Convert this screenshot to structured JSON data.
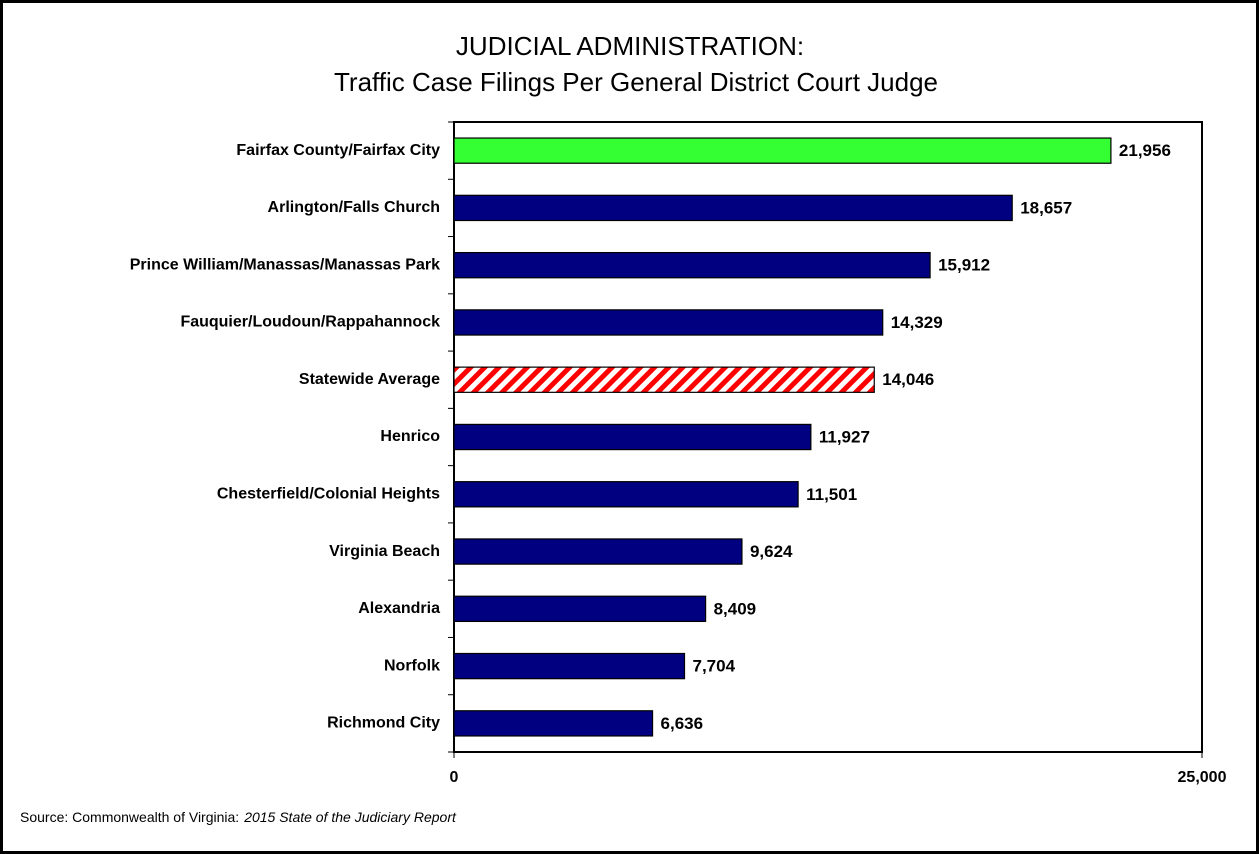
{
  "chart_data": {
    "type": "barh",
    "title": [
      "JUDICIAL ADMINISTRATION:",
      "Traffic Case Filings Per General District Court Judge"
    ],
    "categories": [
      "Fairfax County/Fairfax City",
      "Arlington/Falls Church",
      "Prince William/Manassas/Manassas Park",
      "Fauquier/Loudoun/Rappahannock",
      "Statewide Average",
      "Henrico",
      "Chesterfield/Colonial Heights",
      "Virginia Beach",
      "Alexandria",
      "Norfolk",
      "Richmond City"
    ],
    "values": [
      21956,
      18657,
      15912,
      14329,
      14046,
      11927,
      11501,
      9624,
      8409,
      7704,
      6636
    ],
    "value_labels": [
      "21,956",
      "18,657",
      "15,912",
      "14,329",
      "14,046",
      "11,927",
      "11,501",
      "9,624",
      "8,409",
      "7,704",
      "6,636"
    ],
    "colors": [
      "#33ff33",
      "#000080",
      "#000080",
      "#000080",
      "#ffffff",
      "#000080",
      "#000080",
      "#000080",
      "#000080",
      "#000080",
      "#000080"
    ],
    "hatched": [
      false,
      false,
      false,
      false,
      true,
      false,
      false,
      false,
      false,
      false,
      false
    ],
    "hatch_color": "#ff0000",
    "xlim": [
      0,
      25000
    ],
    "xticks": [
      0,
      {
        "value": 25000,
        "label": "25,000"
      }
    ],
    "source": {
      "text": "Source: Commonwealth of Virginia:",
      "italic": "2015 State of the Judiciary Report"
    }
  }
}
